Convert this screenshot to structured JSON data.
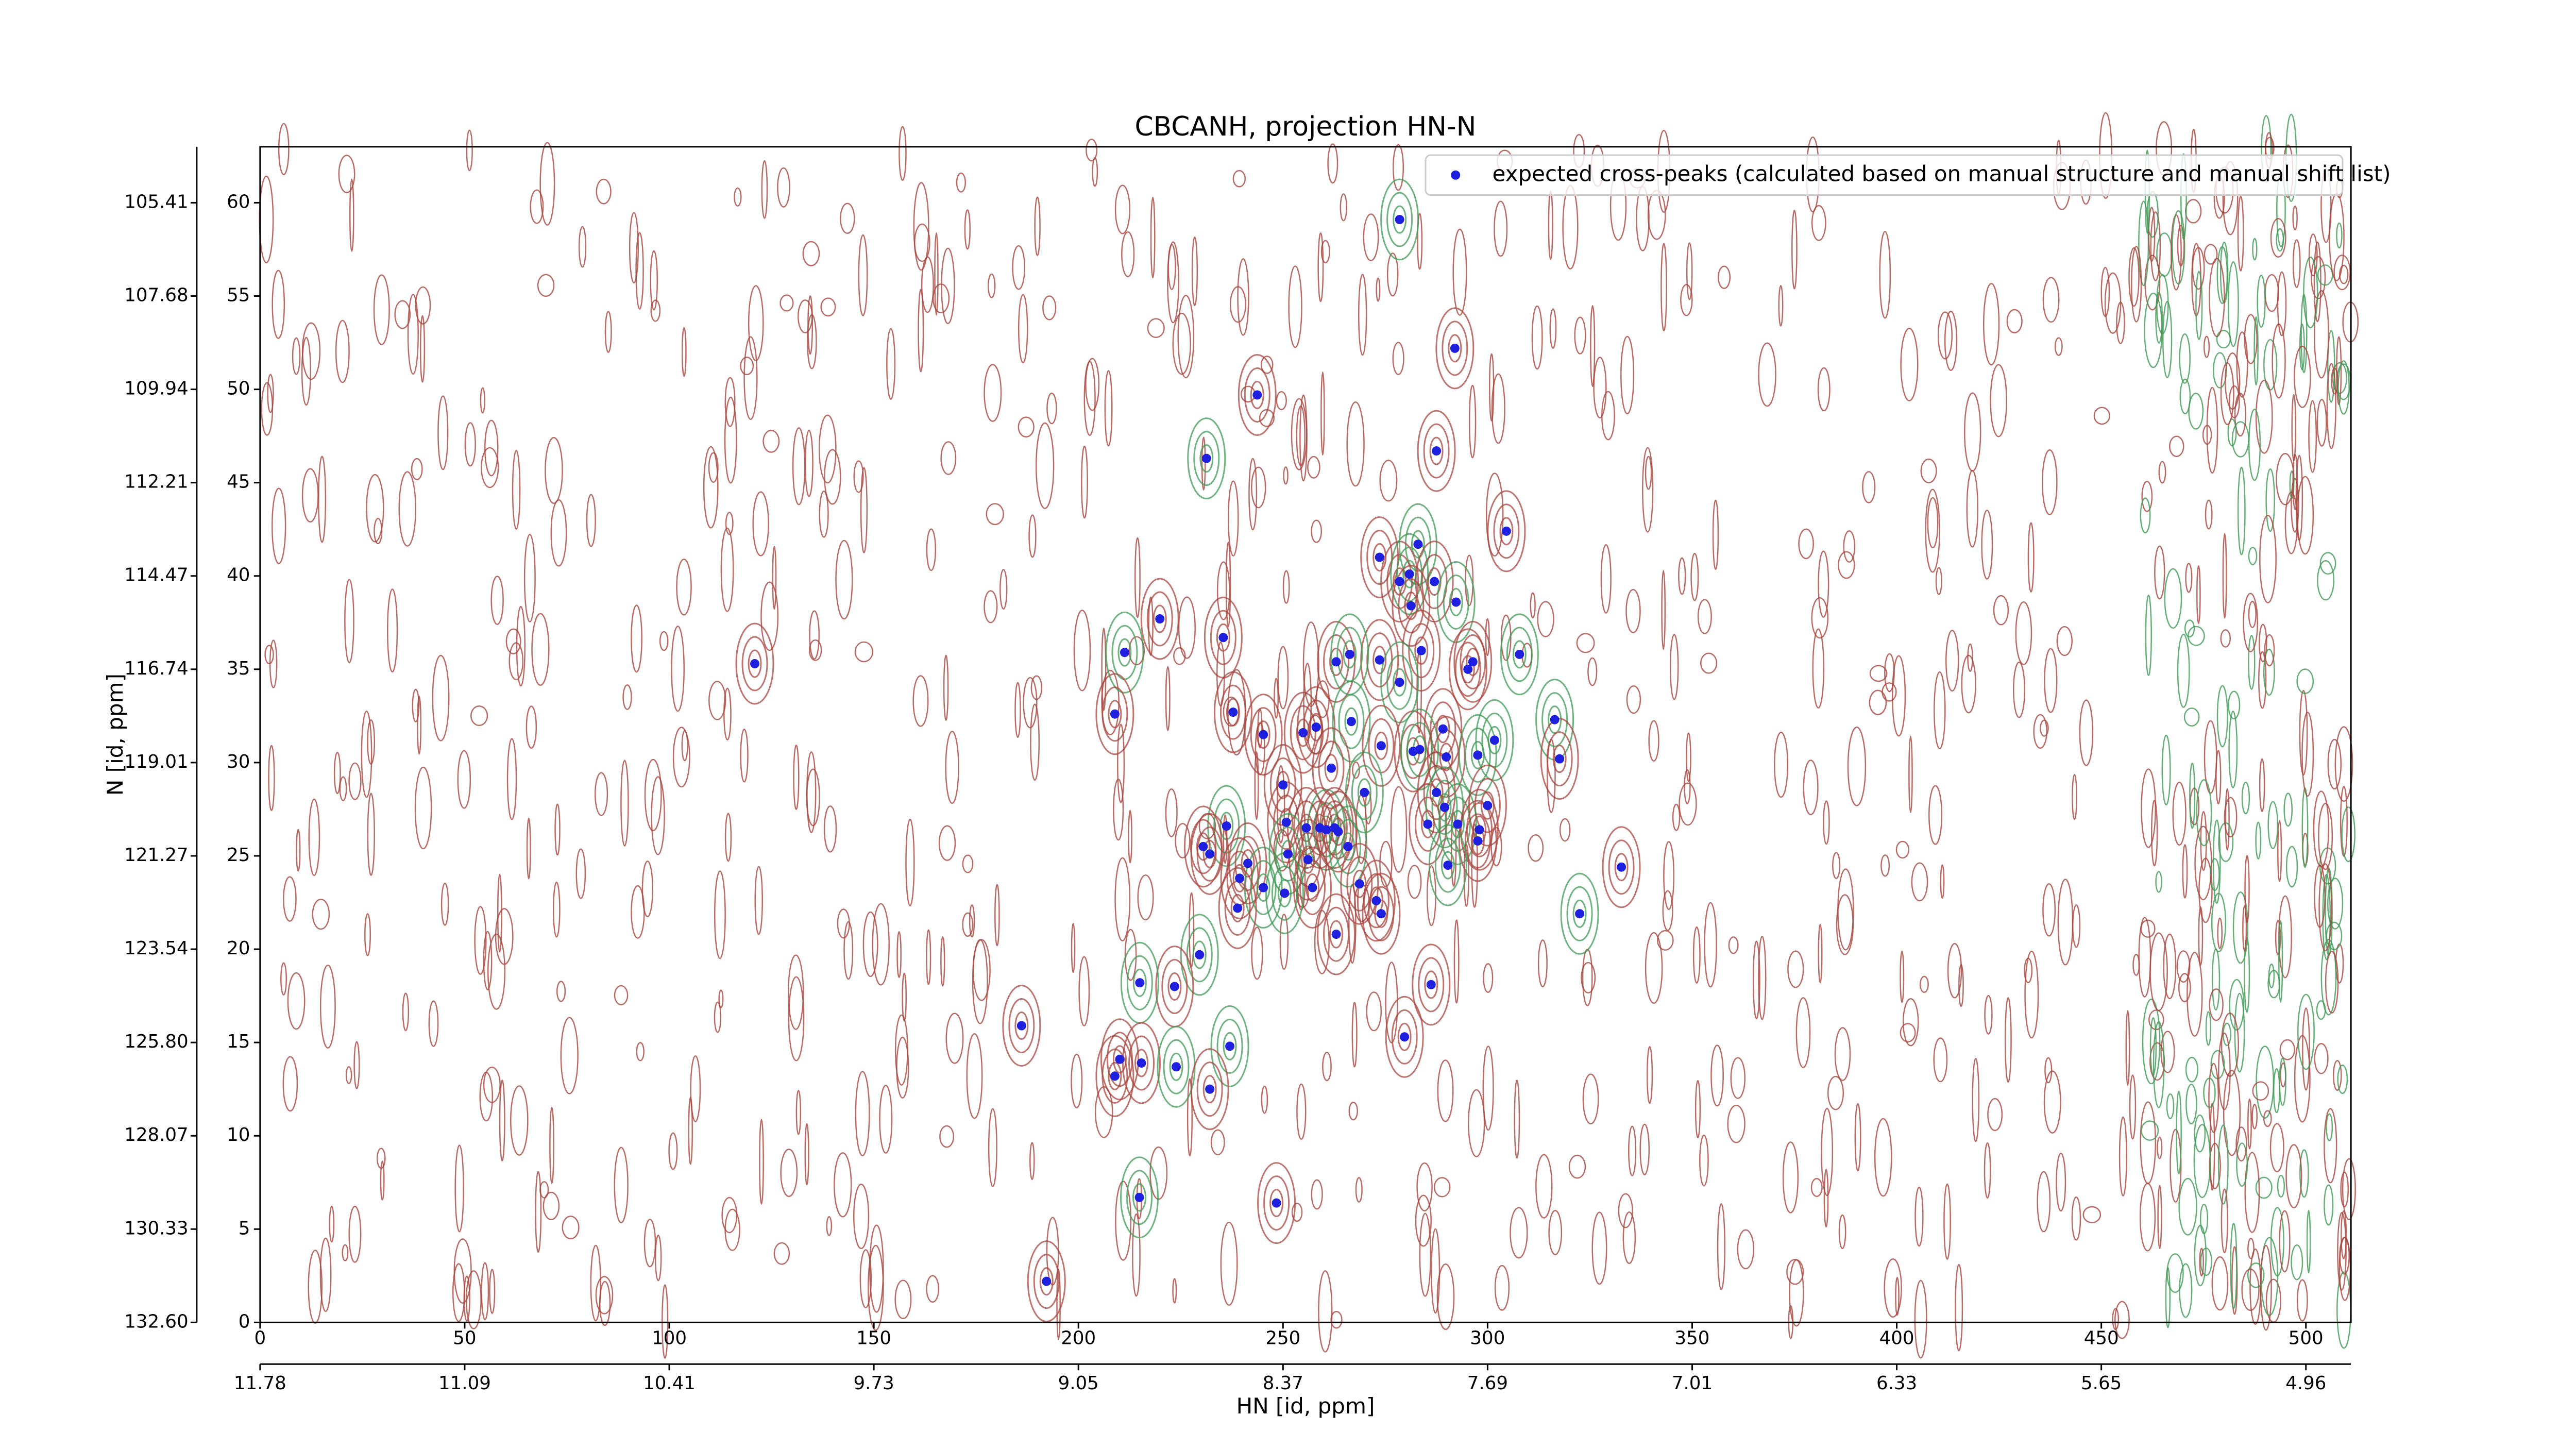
{
  "chart_data": {
    "type": "scatter",
    "title": "CBCANH, projection HN-N",
    "xlabel": "HN [id, ppm]",
    "ylabel": "N [id, ppm]",
    "legend": "upper right",
    "xlim": [
      0,
      511
    ],
    "ylim": [
      0,
      63
    ],
    "xticks": [
      0,
      50,
      100,
      150,
      200,
      250,
      300,
      350,
      400,
      450,
      500
    ],
    "yticks": [
      0,
      5,
      10,
      15,
      20,
      25,
      30,
      35,
      40,
      45,
      50,
      55,
      60
    ],
    "x2ticks": [
      {
        "value": 0,
        "label": "11.78"
      },
      {
        "value": 50,
        "label": "11.09"
      },
      {
        "value": 100,
        "label": "10.41"
      },
      {
        "value": 150,
        "label": "9.73"
      },
      {
        "value": 200,
        "label": "9.05"
      },
      {
        "value": 250,
        "label": "8.37"
      },
      {
        "value": 300,
        "label": "7.69"
      },
      {
        "value": 350,
        "label": "7.01"
      },
      {
        "value": 400,
        "label": "6.33"
      },
      {
        "value": 450,
        "label": "5.65"
      },
      {
        "value": 500,
        "label": "4.96"
      }
    ],
    "y2ticks": [
      {
        "value": 0,
        "label": "132.60"
      },
      {
        "value": 5,
        "label": "130.33"
      },
      {
        "value": 10,
        "label": "128.07"
      },
      {
        "value": 15,
        "label": "125.80"
      },
      {
        "value": 20,
        "label": "123.54"
      },
      {
        "value": 25,
        "label": "121.27"
      },
      {
        "value": 30,
        "label": "119.01"
      },
      {
        "value": 35,
        "label": "116.74"
      },
      {
        "value": 40,
        "label": "114.47"
      },
      {
        "value": 45,
        "label": "112.21"
      },
      {
        "value": 50,
        "label": "109.94"
      },
      {
        "value": 55,
        "label": "107.68"
      },
      {
        "value": 60,
        "label": "105.41"
      }
    ],
    "series": [
      {
        "name": "expected cross-peaks (calculated based on manual structure and manual shift list)",
        "color": "#1f1fe0",
        "x": [
          278.5,
          292,
          243.7,
          231.3,
          287.5,
          304.6,
          283,
          273.6,
          278.5,
          280.9,
          287,
          281.3,
          292.3,
          219.9,
          235.4,
          211.3,
          120.9,
          283.8,
          307.8,
          263,
          273.6,
          266.3,
          296.4,
          295.2,
          278.5,
          208.9,
          237.8,
          316.4,
          258.1,
          254.9,
          266.7,
          245.2,
          289.1,
          301.7,
          274,
          281.8,
          283.4,
          317.6,
          289.9,
          297.6,
          261.8,
          250,
          269.9,
          287.5,
          300,
          289.5,
          250.8,
          285.4,
          236.2,
          255.7,
          259,
          260.6,
          262.6,
          263.5,
          292.7,
          298,
          297.6,
          265.9,
          230.5,
          232.1,
          251.2,
          256.1,
          241.4,
          290.3,
          332.7,
          239.4,
          245.2,
          257.2,
          268.7,
          250.4,
          272.8,
          238.9,
          322.5,
          274,
          263,
          229.6,
          286.2,
          223.5,
          215,
          186.1,
          279.7,
          237,
          210.1,
          215.4,
          223.9,
          208.9,
          232.1,
          214.9,
          248.4,
          192.2
        ],
        "values": [
          59.1,
          52.2,
          49.7,
          46.3,
          46.7,
          42.4,
          41.7,
          41.0,
          39.7,
          40.1,
          39.7,
          38.4,
          38.6,
          37.7,
          36.7,
          35.9,
          35.3,
          36.0,
          35.8,
          35.4,
          35.5,
          35.8,
          35.4,
          35.0,
          34.3,
          32.6,
          32.7,
          32.3,
          31.9,
          31.6,
          32.2,
          31.5,
          31.8,
          31.2,
          30.9,
          30.6,
          30.7,
          30.2,
          30.3,
          30.4,
          29.7,
          28.8,
          28.4,
          28.4,
          27.7,
          27.6,
          26.8,
          26.7,
          26.6,
          26.5,
          26.5,
          26.4,
          26.5,
          26.3,
          26.7,
          26.4,
          25.8,
          25.5,
          25.5,
          25.1,
          25.1,
          24.8,
          24.6,
          24.5,
          24.4,
          23.8,
          23.3,
          23.3,
          23.5,
          23.0,
          22.6,
          22.2,
          21.9,
          21.9,
          20.8,
          19.7,
          18.1,
          18.0,
          18.2,
          15.9,
          15.3,
          14.8,
          14.1,
          13.9,
          13.7,
          13.2,
          12.5,
          6.7,
          6.4,
          2.2
        ]
      }
    ]
  }
}
